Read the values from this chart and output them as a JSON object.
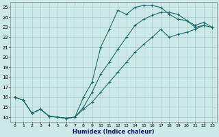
{
  "xlabel": "Humidex (Indice chaleur)",
  "background_color": "#cce8e8",
  "grid_color": "#aacccc",
  "line_color": "#1a6e6a",
  "xlim": [
    -0.5,
    23.5
  ],
  "ylim": [
    13.5,
    25.5
  ],
  "xticks": [
    0,
    1,
    2,
    3,
    4,
    5,
    6,
    7,
    8,
    9,
    10,
    11,
    12,
    13,
    14,
    15,
    16,
    17,
    18,
    19,
    20,
    21,
    22,
    23
  ],
  "yticks": [
    14,
    15,
    16,
    17,
    18,
    19,
    20,
    21,
    22,
    23,
    24,
    25
  ],
  "line1_x": [
    0,
    1,
    2,
    3,
    4,
    5,
    6,
    7,
    8,
    9,
    10,
    11,
    12,
    13,
    14,
    15,
    16,
    17,
    18,
    19,
    20,
    21,
    22
  ],
  "line1_y": [
    16.0,
    15.7,
    14.4,
    14.8,
    14.1,
    14.0,
    13.9,
    14.0,
    16.0,
    17.5,
    21.0,
    22.8,
    24.7,
    24.3,
    25.0,
    25.2,
    25.2,
    25.0,
    24.3,
    23.8,
    23.7,
    23.0,
    23.2
  ],
  "line2_x": [
    0,
    1,
    2,
    3,
    4,
    5,
    6,
    7,
    8,
    9,
    10,
    11,
    12,
    13,
    14,
    15,
    16,
    17,
    18,
    19,
    20,
    21,
    22,
    23
  ],
  "line2_y": [
    16.0,
    15.7,
    14.4,
    14.8,
    14.1,
    14.0,
    13.9,
    14.0,
    15.0,
    16.5,
    18.3,
    19.5,
    20.8,
    22.0,
    23.2,
    23.8,
    24.2,
    24.5,
    24.5,
    24.3,
    23.7,
    23.2,
    23.5,
    23.0
  ],
  "line3_x": [
    0,
    1,
    2,
    3,
    4,
    5,
    6,
    7,
    8,
    9,
    10,
    11,
    12,
    13,
    14,
    15,
    16,
    17,
    18,
    19,
    20,
    21,
    22,
    23
  ],
  "line3_y": [
    16.0,
    15.7,
    14.4,
    14.8,
    14.1,
    14.0,
    13.9,
    14.0,
    14.8,
    15.5,
    16.5,
    17.5,
    18.5,
    19.5,
    20.5,
    21.3,
    22.0,
    22.8,
    22.0,
    22.3,
    22.5,
    22.8,
    23.2,
    23.0
  ]
}
